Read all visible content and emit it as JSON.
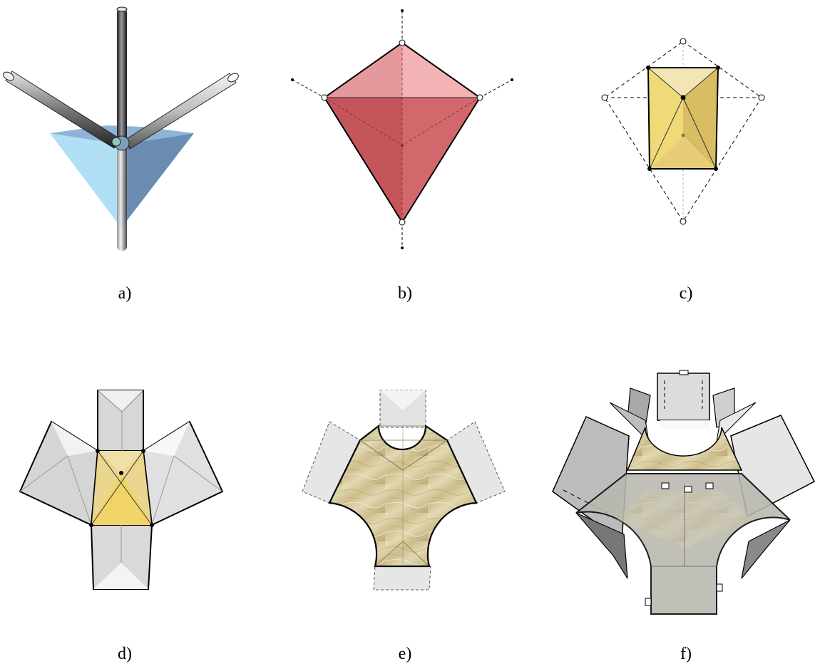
{
  "panels": [
    {
      "id": "a",
      "caption": "a)"
    },
    {
      "id": "b",
      "caption": "b)"
    },
    {
      "id": "c",
      "caption": "c)"
    },
    {
      "id": "d",
      "caption": "d)"
    },
    {
      "id": "e",
      "caption": "e)"
    },
    {
      "id": "f",
      "caption": "f)"
    }
  ],
  "colors": {
    "rod_dark": "#3a3a3a",
    "rod_light": "#d6d6d6",
    "tetra_light": "#a9dcf2",
    "tetra_dark": "#5b7fa8",
    "kite_light": "#f0a0a3",
    "kite_dark": "#c7565b",
    "gold_light": "#f2df8a",
    "gold_dark": "#d4b55a",
    "panel_gray": "#dcdcdc",
    "panel_gray_dark": "#9a9a9a",
    "texture": "#d9cfa6"
  }
}
